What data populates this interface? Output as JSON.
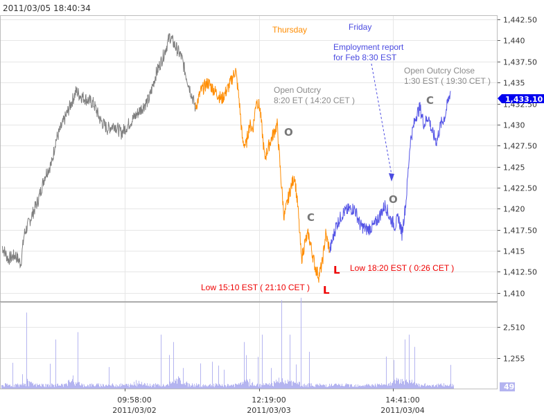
{
  "timestamp": "2011/03/05 18:40:34",
  "colors": {
    "grid": "#e6e6e6",
    "frame": "#bdbdbd",
    "series_day1": "#7f7f7f",
    "series_day2": "#ff8c00",
    "series_day3": "#5555e6",
    "volume": "#b4b4f0",
    "last_badge": "#0000ee",
    "red": "#ee0000",
    "gray_text": "#8a8a8a",
    "orange_text": "#ff8c00",
    "blue_text": "#4a4ae0"
  },
  "chart_data": {
    "type": "line",
    "price_axis": {
      "ticks": [
        "1,442.50",
        "1,440",
        "1,437.50",
        "1,435",
        "1,432.50",
        "1,430",
        "1,427.50",
        "1,425",
        "1,422.50",
        "1,420",
        "1,417.50",
        "1,415",
        "1,412.50",
        "1,410"
      ],
      "ylim": [
        1409,
        1443
      ]
    },
    "volume_axis": {
      "ticks": [
        "2,510",
        "1,255"
      ],
      "ylim": [
        0,
        3500
      ]
    },
    "x_ticks": [
      {
        "time": "09:58:00",
        "date": "2011/03/02",
        "x": 180
      },
      {
        "time": "12:19:00",
        "date": "2011/03/03",
        "x": 374
      },
      {
        "time": "14:41:00",
        "date": "2011/03/04",
        "x": 567
      }
    ],
    "last_price": "1,433.10",
    "last_volume": "49",
    "series": [
      {
        "x": [
          3,
          12,
          22,
          30,
          35,
          45,
          55,
          65,
          75,
          80,
          90,
          100,
          110,
          115,
          125,
          135,
          145,
          155,
          165,
          175,
          185,
          195,
          205,
          215,
          225,
          235,
          245,
          255,
          262,
          268,
          275,
          282
        ],
        "y": [
          1415.5,
          1414,
          1414.5,
          1413.5,
          1417,
          1419,
          1421,
          1424,
          1425.5,
          1428,
          1430,
          1432,
          1434,
          1433.5,
          1433,
          1432.5,
          1430.5,
          1429.5,
          1430,
          1429,
          1430,
          1431,
          1432,
          1433,
          1436,
          1438,
          1440.5,
          1439,
          1438,
          1436,
          1434,
          1432
        ]
      },
      {
        "x": [
          282,
          290,
          300,
          310,
          320,
          330,
          340,
          345,
          350,
          355,
          360,
          365,
          370,
          375,
          382,
          390,
          400,
          405,
          410,
          418,
          425,
          430,
          435,
          440,
          445,
          450,
          455,
          460,
          465,
          470,
          476
        ],
        "y": [
          1432,
          1434,
          1435,
          1434,
          1433,
          1434.5,
          1436.5,
          1433,
          1428,
          1427.5,
          1430,
          1429.5,
          1433,
          1432,
          1426,
          1428,
          1430,
          1424,
          1419,
          1422,
          1424,
          1420,
          1414,
          1416,
          1417,
          1415,
          1413,
          1412,
          1413.5,
          1417,
          1415
        ]
      },
      {
        "x": [
          476,
          485,
          495,
          505,
          512,
          520,
          530,
          540,
          550,
          556,
          562,
          570,
          575,
          580,
          586,
          592,
          600,
          606,
          612,
          618,
          624,
          630,
          636,
          642,
          650
        ],
        "y": [
          1415,
          1418,
          1419.5,
          1420,
          1420,
          1418,
          1417.5,
          1418,
          1419.5,
          1420.5,
          1419,
          1418,
          1419,
          1417,
          1421,
          1428,
          1431,
          1432,
          1430,
          1431,
          1429,
          1428,
          1430,
          1431,
          1434
        ]
      }
    ]
  },
  "annotations": {
    "thursday": "Thursday",
    "friday": "Friday",
    "employment_line1": "Employment report",
    "employment_line2": "for Feb  8:30 EST",
    "open_outcry_line1": "Open Outcry",
    "open_outcry_line2": "8:20 ET ( 14:20 CET )",
    "open_outcry_close_line1": "Open Outcry Close",
    "open_outcry_close_line2": "1:30 EST ( 19:30 CET )",
    "low_thursday": "Low  15:10 EST ( 21:10 CET )",
    "low_friday": "Low  18:20 EST ( 0:26 CET )",
    "marker_o": "O",
    "marker_c": "C",
    "marker_l": "L"
  }
}
